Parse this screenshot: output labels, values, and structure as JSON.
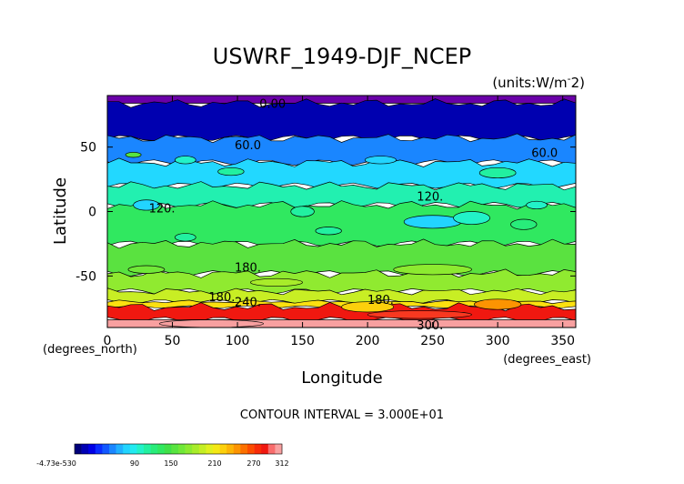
{
  "chart_data": {
    "type": "contour",
    "title": "USWRF_1949-DJF_NCEP",
    "units_label": "(units:W/m^2)",
    "xlabel": "Longitude",
    "ylabel": "Latitude",
    "x_unit_note": "(degrees_east)",
    "y_unit_note": "(degrees_north)",
    "xlim": [
      0,
      360
    ],
    "ylim": [
      -90,
      90
    ],
    "x_ticks": [
      0,
      50,
      100,
      150,
      200,
      250,
      300,
      350
    ],
    "y_ticks": [
      50,
      0,
      -50
    ],
    "contour_interval_text": "CONTOUR INTERVAL = 3.000E+01",
    "contour_labels": [
      {
        "text": "0.00",
        "x": 127,
        "y": 84
      },
      {
        "text": "60.0",
        "x": 108,
        "y": 52
      },
      {
        "text": "60.0",
        "x": 336,
        "y": 46
      },
      {
        "text": "120.",
        "x": 42,
        "y": 3
      },
      {
        "text": "120.",
        "x": 248,
        "y": 12
      },
      {
        "text": "180.",
        "x": 108,
        "y": -43
      },
      {
        "text": "180.",
        "x": 88,
        "y": -66
      },
      {
        "text": "240.",
        "x": 108,
        "y": -70
      },
      {
        "text": "180.",
        "x": 210,
        "y": -68
      },
      {
        "text": "300.",
        "x": 248,
        "y": -88
      }
    ],
    "colorbar": {
      "tick_labels": [
        "-4.73e-530",
        "90",
        "150",
        "210",
        "270",
        "312"
      ],
      "colors": [
        "#00007a",
        "#0000b4",
        "#0000e6",
        "#0a2cff",
        "#1258ff",
        "#1a86ff",
        "#20b0ff",
        "#22d4ff",
        "#22eaf0",
        "#22f2c8",
        "#22f0a0",
        "#28ec7a",
        "#30e860",
        "#40e048",
        "#58e440",
        "#70e838",
        "#8cea30",
        "#a8ec2a",
        "#c4ee24",
        "#e0f01e",
        "#f4e814",
        "#fcd00c",
        "#fcb406",
        "#fc9402",
        "#fc7000",
        "#fc4c00",
        "#f82c08",
        "#f01810",
        "#f86c6c",
        "#f8a0a0"
      ]
    },
    "lat_bands": [
      {
        "lat_top": 90,
        "lat_bot": 84,
        "color": "#6a00a8"
      },
      {
        "lat_top": 84,
        "lat_bot": 57,
        "color": "#0000b0"
      },
      {
        "lat_top": 57,
        "lat_bot": 38,
        "color": "#1a86ff"
      },
      {
        "lat_top": 38,
        "lat_bot": 20,
        "color": "#22d8ff"
      },
      {
        "lat_top": 20,
        "lat_bot": 5,
        "color": "#22f0b0"
      },
      {
        "lat_top": 5,
        "lat_bot": -25,
        "color": "#30e860"
      },
      {
        "lat_top": -25,
        "lat_bot": -48,
        "color": "#5ae240"
      },
      {
        "lat_top": -48,
        "lat_bot": -62,
        "color": "#90ea30"
      },
      {
        "lat_top": -62,
        "lat_bot": -70,
        "color": "#c8ee24"
      },
      {
        "lat_top": -70,
        "lat_bot": -74,
        "color": "#fce010"
      },
      {
        "lat_top": -74,
        "lat_bot": -84,
        "color": "#f01810"
      },
      {
        "lat_top": -84,
        "lat_bot": -90,
        "color": "#f8a0a0"
      }
    ]
  }
}
